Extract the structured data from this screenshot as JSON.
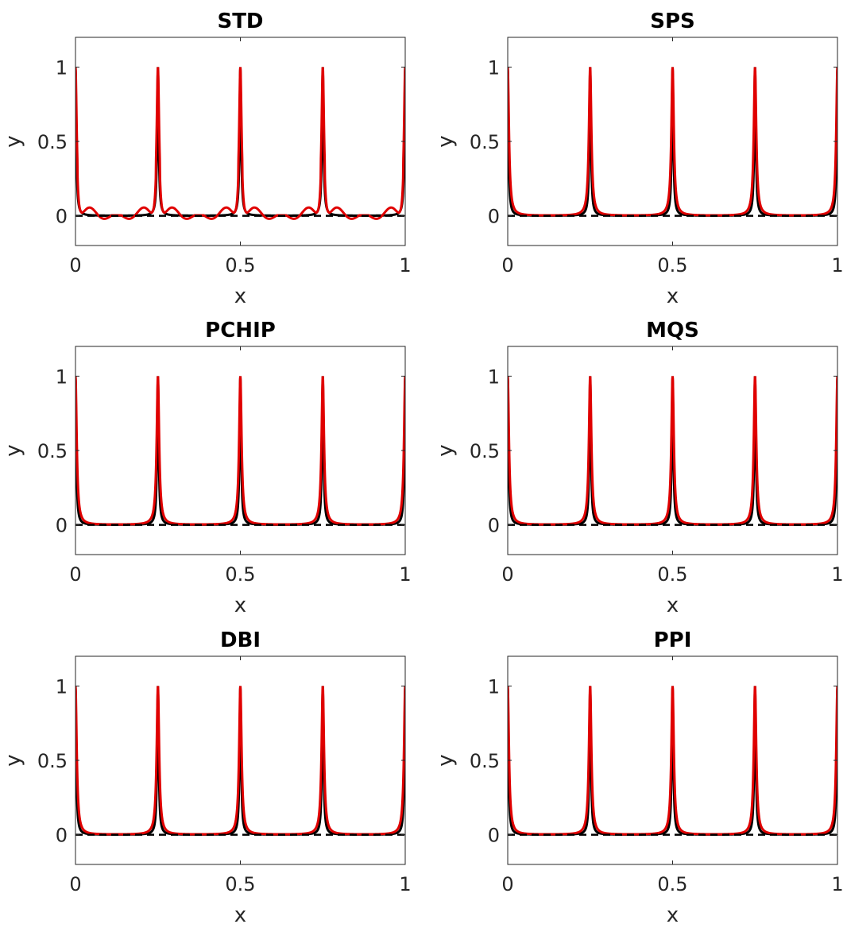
{
  "colors": {
    "reference": "#000000",
    "interpolant": "#e00000",
    "zero_line": "#000000",
    "axes": "#262626"
  },
  "chart_data": [
    {
      "type": "line",
      "title": "STD",
      "xlabel": "x",
      "ylabel": "y",
      "xlim": [
        0,
        1
      ],
      "ylim": [
        -0.2,
        1.2
      ],
      "xticks": [
        "0",
        "0.5",
        "1"
      ],
      "yticks": [
        "0",
        "0.5",
        "1"
      ],
      "peaks": [
        0,
        0.25,
        0.5,
        0.75,
        1
      ],
      "peak_value": 1,
      "series": [
        {
          "style": "black-solid",
          "shape": "sharp-peaks"
        },
        {
          "style": "red-solid",
          "shape": "oscillating",
          "overshoot": -0.09
        },
        {
          "style": "black-dashed",
          "value": 0
        }
      ]
    },
    {
      "type": "line",
      "title": "SPS",
      "xlabel": "x",
      "ylabel": "y",
      "xlim": [
        0,
        1
      ],
      "ylim": [
        -0.2,
        1.2
      ],
      "xticks": [
        "0",
        "0.5",
        "1"
      ],
      "yticks": [
        "0",
        "0.5",
        "1"
      ],
      "peaks": [
        0,
        0.25,
        0.5,
        0.75,
        1
      ],
      "peak_value": 1,
      "series": [
        {
          "style": "black-solid",
          "shape": "sharp-peaks"
        },
        {
          "style": "red-solid",
          "shape": "smooth-peaks"
        },
        {
          "style": "black-dashed",
          "value": 0
        }
      ]
    },
    {
      "type": "line",
      "title": "PCHIP",
      "xlabel": "x",
      "ylabel": "y",
      "xlim": [
        0,
        1
      ],
      "ylim": [
        -0.2,
        1.2
      ],
      "xticks": [
        "0",
        "0.5",
        "1"
      ],
      "yticks": [
        "0",
        "0.5",
        "1"
      ],
      "peaks": [
        0,
        0.25,
        0.5,
        0.75,
        1
      ],
      "peak_value": 1,
      "series": [
        {
          "style": "black-solid",
          "shape": "sharp-peaks"
        },
        {
          "style": "red-solid",
          "shape": "smooth-peaks"
        },
        {
          "style": "black-dashed",
          "value": 0
        }
      ]
    },
    {
      "type": "line",
      "title": "MQS",
      "xlabel": "x",
      "ylabel": "y",
      "xlim": [
        0,
        1
      ],
      "ylim": [
        -0.2,
        1.2
      ],
      "xticks": [
        "0",
        "0.5",
        "1"
      ],
      "yticks": [
        "0",
        "0.5",
        "1"
      ],
      "peaks": [
        0,
        0.25,
        0.5,
        0.75,
        1
      ],
      "peak_value": 1,
      "series": [
        {
          "style": "black-solid",
          "shape": "sharp-peaks"
        },
        {
          "style": "red-solid",
          "shape": "smooth-peaks"
        },
        {
          "style": "black-dashed",
          "value": 0
        }
      ]
    },
    {
      "type": "line",
      "title": "DBI",
      "xlabel": "x",
      "ylabel": "y",
      "xlim": [
        0,
        1
      ],
      "ylim": [
        -0.2,
        1.2
      ],
      "xticks": [
        "0",
        "0.5",
        "1"
      ],
      "yticks": [
        "0",
        "0.5",
        "1"
      ],
      "peaks": [
        0,
        0.25,
        0.5,
        0.75,
        1
      ],
      "peak_value": 1,
      "series": [
        {
          "style": "black-solid",
          "shape": "sharp-peaks"
        },
        {
          "style": "red-solid",
          "shape": "smooth-peaks"
        },
        {
          "style": "black-dashed",
          "value": 0
        }
      ]
    },
    {
      "type": "line",
      "title": "PPI",
      "xlabel": "x",
      "ylabel": "y",
      "xlim": [
        0,
        1
      ],
      "ylim": [
        -0.2,
        1.2
      ],
      "xticks": [
        "0",
        "0.5",
        "1"
      ],
      "yticks": [
        "0",
        "0.5",
        "1"
      ],
      "peaks": [
        0,
        0.25,
        0.5,
        0.75,
        1
      ],
      "peak_value": 1,
      "series": [
        {
          "style": "black-solid",
          "shape": "sharp-peaks"
        },
        {
          "style": "red-solid",
          "shape": "smooth-peaks"
        },
        {
          "style": "black-dashed",
          "value": 0
        }
      ]
    }
  ]
}
